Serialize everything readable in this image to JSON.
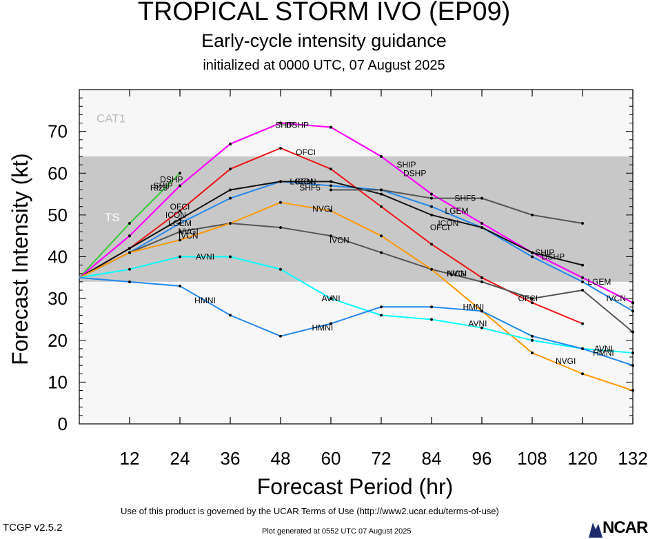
{
  "header": {
    "title": "TROPICAL STORM IVO (EP09)",
    "subtitle": "Early-cycle intensity guidance",
    "initialized": "initialized at 0000 UTC, 07 August 2025"
  },
  "footer": {
    "terms": "Use of this product is governed by the UCAR Terms of Use (http://www2.ucar.edu/terms-of-use)",
    "version": "TCGP v2.5.2",
    "plot_generated": "Plot generated at 0552 UTC   07 August 2025",
    "logo_text": "NCAR"
  },
  "colors": {
    "cat1_band": "#f7f7f7",
    "ts_band": "#c8c8c8",
    "below_band": "#f7f7f7"
  },
  "chart_data": {
    "type": "line",
    "title": "TROPICAL STORM IVO (EP09)",
    "xlabel": "Forecast Period (hr)",
    "ylabel": "Forecast Intensity (kt)",
    "xlim": [
      0,
      132
    ],
    "ylim": [
      0,
      80
    ],
    "x_ticks": [
      12,
      24,
      36,
      48,
      60,
      72,
      84,
      96,
      108,
      120,
      132
    ],
    "y_ticks": [
      0,
      10,
      20,
      30,
      40,
      50,
      60,
      70
    ],
    "bands": [
      {
        "label": "CAT1",
        "from": 64,
        "to": 80,
        "color": "#f7f7f7"
      },
      {
        "label": "TS",
        "from": 34,
        "to": 64,
        "color": "#c8c8c8"
      },
      {
        "label": "",
        "from": 0,
        "to": 34,
        "color": "#f7f7f7"
      }
    ],
    "series": [
      {
        "name": "RI25",
        "color": "#33cc33",
        "x": [
          0,
          12,
          24
        ],
        "y": [
          35,
          48,
          60
        ],
        "labels": [
          [
            19,
            56.5
          ]
        ]
      },
      {
        "name": "DSHP",
        "color": "#ff00ff",
        "x": [
          0,
          12,
          24,
          36,
          48,
          60,
          72,
          84,
          96,
          108,
          120,
          132
        ],
        "y": [
          35,
          45,
          57,
          67,
          72,
          71,
          64,
          55,
          48,
          41,
          35,
          29
        ],
        "labels": [
          [
            22,
            58.5
          ],
          [
            52,
            71.5
          ],
          [
            80,
            60
          ],
          [
            113,
            40
          ]
        ]
      },
      {
        "name": "SHIP",
        "color": "#ff00ff",
        "x": [
          0,
          12,
          24,
          36,
          48,
          60,
          72,
          84,
          96,
          108,
          120,
          132
        ],
        "y": [
          35,
          45,
          57,
          67,
          72,
          71,
          64,
          55,
          48,
          41,
          35,
          29
        ],
        "labels": [
          [
            20,
            57
          ],
          [
            49,
            71.5
          ],
          [
            78,
            62
          ],
          [
            111,
            41
          ]
        ]
      },
      {
        "name": "OFCI",
        "color": "#ee1111",
        "x": [
          0,
          12,
          24,
          36,
          48,
          60,
          72,
          84,
          96,
          108,
          120
        ],
        "y": [
          35,
          42,
          51,
          61,
          66,
          61,
          52,
          43,
          35,
          29,
          24
        ],
        "labels": [
          [
            24,
            52
          ],
          [
            54,
            65
          ],
          [
            86,
            47
          ],
          [
            107,
            30
          ]
        ]
      },
      {
        "name": "LGEM",
        "color": "#2288ee",
        "x": [
          0,
          12,
          24,
          36,
          48,
          60,
          72,
          84,
          96,
          108,
          120,
          132
        ],
        "y": [
          35,
          41,
          48,
          54,
          58,
          57,
          56,
          52,
          47,
          40,
          34,
          27
        ],
        "labels": [
          [
            24,
            48
          ],
          [
            53,
            58
          ],
          [
            90,
            51
          ],
          [
            124,
            34
          ]
        ]
      },
      {
        "name": "ICON",
        "color": "#111111",
        "x": [
          0,
          12,
          24,
          36,
          48,
          60,
          72,
          84,
          96,
          108,
          120
        ],
        "y": [
          35,
          42,
          49,
          56,
          58,
          58,
          55,
          50,
          47,
          41,
          38
        ],
        "labels": [
          [
            23,
            50
          ],
          [
            54,
            58
          ],
          [
            88,
            48
          ]
        ]
      },
      {
        "name": "SHF5",
        "color": "#555555",
        "x": [
          60,
          72,
          84,
          96,
          108,
          120
        ],
        "y": [
          56,
          56,
          54,
          54,
          50,
          48
        ],
        "labels": [
          [
            55,
            56.5
          ],
          [
            92,
            54
          ]
        ]
      },
      {
        "name": "IVCN",
        "color": "#555555",
        "x": [
          0,
          12,
          24,
          36,
          48,
          60,
          72,
          84,
          96,
          108,
          120,
          132
        ],
        "y": [
          35,
          41,
          46,
          48,
          47,
          45,
          41,
          37,
          34,
          30,
          32,
          22
        ],
        "labels": [
          [
            26,
            45
          ],
          [
            62,
            44
          ],
          [
            90,
            36
          ],
          [
            128,
            30
          ]
        ]
      },
      {
        "name": "NVGI",
        "color": "#ff9900",
        "x": [
          0,
          12,
          24,
          36,
          48,
          60,
          72,
          84,
          96,
          108,
          120,
          132
        ],
        "y": [
          35,
          41,
          44,
          48,
          53,
          51,
          45,
          37,
          27,
          17,
          12,
          8
        ],
        "labels": [
          [
            26,
            46
          ],
          [
            58,
            51.5
          ],
          [
            90,
            36
          ],
          [
            116,
            15
          ]
        ]
      },
      {
        "name": "AVNI",
        "color": "#00ffff",
        "x": [
          0,
          12,
          24,
          36,
          48,
          60,
          72,
          84,
          96,
          108,
          120,
          132
        ],
        "y": [
          35,
          37,
          40,
          40,
          37,
          30,
          26,
          25,
          23,
          20,
          18,
          17
        ],
        "labels": [
          [
            30,
            40
          ],
          [
            60,
            30
          ],
          [
            95,
            24
          ],
          [
            125,
            18
          ]
        ]
      },
      {
        "name": "HMNI",
        "color": "#2288ee",
        "x": [
          0,
          12,
          24,
          36,
          48,
          60,
          72,
          84,
          96,
          108,
          120,
          132
        ],
        "y": [
          35,
          34,
          33,
          26,
          21,
          24,
          28,
          28,
          27,
          21,
          18,
          14
        ],
        "labels": [
          [
            30,
            29.5
          ],
          [
            58,
            23
          ],
          [
            94,
            28
          ],
          [
            125,
            17
          ]
        ]
      }
    ]
  }
}
